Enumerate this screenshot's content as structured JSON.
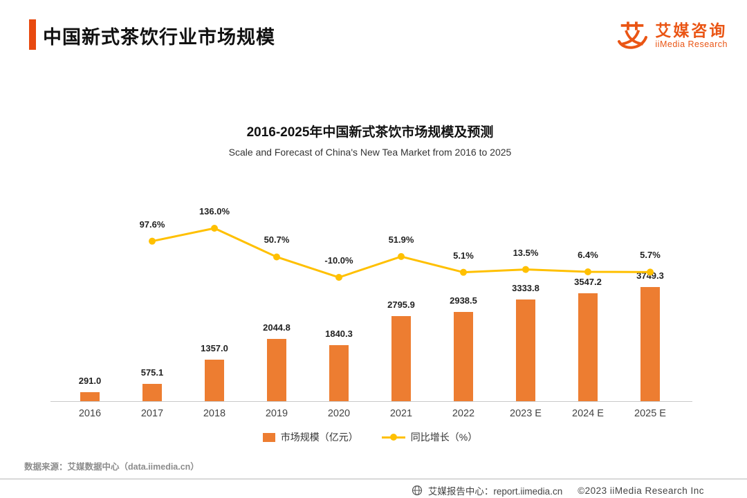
{
  "header": {
    "title": "中国新式茶饮行业市场规模",
    "accent_color": "#e8490f"
  },
  "logo": {
    "glyph": "艾",
    "name_cn": "艾媒咨询",
    "name_en": "iiMedia Research",
    "color": "#ea5514"
  },
  "chart": {
    "title": "2016-2025年中国新式茶饮市场规模及预测",
    "subtitle": "Scale and Forecast of China's New Tea Market from 2016 to 2025"
  },
  "chart_data": {
    "type": "bar",
    "categories": [
      "2016",
      "2017",
      "2018",
      "2019",
      "2020",
      "2021",
      "2022",
      "2023 E",
      "2024 E",
      "2025 E"
    ],
    "series": [
      {
        "name": "市场规模（亿元）",
        "type": "bar",
        "color": "#ed7d31",
        "values": [
          291.0,
          575.1,
          1357.0,
          2044.8,
          1840.3,
          2795.9,
          2938.5,
          3333.8,
          3547.2,
          3749.3
        ],
        "labels": [
          "291.0",
          "575.1",
          "1357.0",
          "2044.8",
          "1840.3",
          "2795.9",
          "2938.5",
          "3333.8",
          "3547.2",
          "3749.3"
        ]
      },
      {
        "name": "同比增长（%）",
        "type": "line",
        "color": "#ffc000",
        "values": [
          null,
          97.6,
          136.0,
          50.7,
          -10.0,
          51.9,
          5.1,
          13.5,
          6.4,
          5.7
        ],
        "labels": [
          "",
          "97.6%",
          "136.0%",
          "50.7%",
          "-10.0%",
          "51.9%",
          "5.1%",
          "13.5%",
          "6.4%",
          "5.7%"
        ]
      }
    ],
    "ylim_bar": [
      0,
      3749.3
    ],
    "grid": false,
    "legend_position": "bottom"
  },
  "source": "数据来源：艾媒数据中心（data.iimedia.cn）",
  "footer": {
    "center": "艾媒报告中心：report.iimedia.cn",
    "right": "©2023  iiMedia Research  Inc"
  }
}
